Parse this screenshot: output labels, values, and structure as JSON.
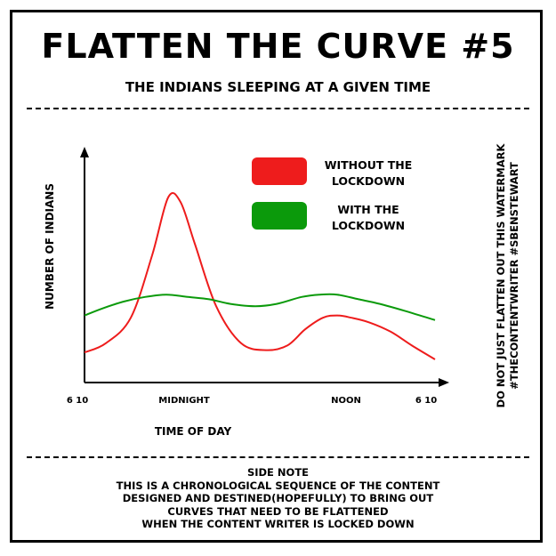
{
  "header": {
    "title": "FLATTEN THE CURVE #5",
    "subtitle": "THE INDIANS SLEEPING AT A GIVEN TIME"
  },
  "watermark": {
    "line1": "DO NOT JUST FLATTEN OUT THIS WATERMARK",
    "line2": "#THECONTENTWRITER #SBENSTEWART"
  },
  "side_note": {
    "heading": "SIDE NOTE",
    "lines": [
      "THIS IS A CHRONOLOGICAL SEQUENCE OF THE CONTENT",
      "DESIGNED AND DESTINED(HOPEFULLY) TO BRING OUT",
      "CURVES THAT NEED TO BE FLATTENED",
      "WHEN THE CONTENT WRITER IS LOCKED DOWN"
    ]
  },
  "colors": {
    "red": "#ee1c1c",
    "green": "#0b9a0b"
  },
  "chart_data": {
    "type": "line",
    "title": "FLATTEN THE CURVE #5",
    "subtitle": "THE INDIANS SLEEPING AT A GIVEN TIME",
    "xlabel": "TIME OF DAY",
    "ylabel": "NUMBER OF INDIANS",
    "x_tick_labels": [
      "6 10",
      "MIDNIGHT",
      "NOON",
      "6 10"
    ],
    "x_tick_positions": [
      -0.02,
      0.28,
      0.735,
      0.96
    ],
    "xlim": [
      0,
      1
    ],
    "ylim": [
      0,
      1
    ],
    "legend": {
      "position": "top-right"
    },
    "series": [
      {
        "name": "WITHOUT THE LOCKDOWN",
        "color": "#ee1c1c",
        "x": [
          0,
          0.06,
          0.13,
          0.19,
          0.235,
          0.27,
          0.31,
          0.37,
          0.44,
          0.51,
          0.57,
          0.62,
          0.67,
          0.71,
          0.75,
          0.8,
          0.86,
          0.92,
          0.985
        ],
        "y": [
          0.13,
          0.17,
          0.28,
          0.55,
          0.8,
          0.78,
          0.6,
          0.33,
          0.17,
          0.14,
          0.16,
          0.23,
          0.28,
          0.29,
          0.28,
          0.26,
          0.22,
          0.16,
          0.1
        ]
      },
      {
        "name": "WITH THE LOCKDOWN",
        "color": "#0b9a0b",
        "x": [
          0,
          0.05,
          0.11,
          0.17,
          0.23,
          0.29,
          0.35,
          0.41,
          0.48,
          0.54,
          0.61,
          0.66,
          0.71,
          0.77,
          0.83,
          0.9,
          0.985
        ],
        "y": [
          0.29,
          0.32,
          0.35,
          0.37,
          0.38,
          0.37,
          0.36,
          0.34,
          0.33,
          0.34,
          0.37,
          0.38,
          0.38,
          0.36,
          0.34,
          0.31,
          0.27
        ]
      }
    ]
  }
}
